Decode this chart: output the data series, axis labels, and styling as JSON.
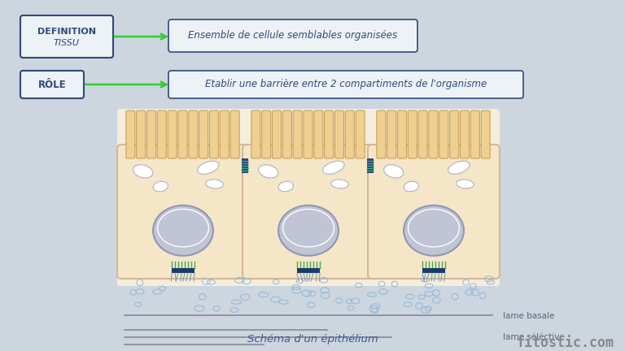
{
  "bg_color": "#cdd5df",
  "title_label": "Schéma d'un épithélium",
  "title_color": "#3a5a8a",
  "watermark": "fitostic.com",
  "watermark_color": "#888888",
  "box1_label_line1": "DEFINITION",
  "box1_label_line2": "TISSU",
  "box1_text": "Ensemble de cellule semblables organisées",
  "box2_label": "RÔLE",
  "box2_text": "Etablir une barrière entre 2 compartiments de l'organisme",
  "box_border_color": "#2e4a7a",
  "label_box_bg": "#edf2f7",
  "text_color": "#2e4a7a",
  "arrow_color": "#33cc33",
  "cell_fill": "#f5e6c8",
  "cell_border": "#d4b896",
  "nucleus_fill": "#c0c4d4",
  "nucleus_border": "#9098b0",
  "organelle_fill": "#e8e8ec",
  "organelle_border": "#b0b0c0",
  "junction_blue": "#2a4a7a",
  "junction_green": "#44aa88",
  "hemi_green": "#44aa55",
  "hemi_blue": "#1a3a6a",
  "dot_edge": "#90b8d8",
  "dot_fill": "#d8eaf8",
  "lame_color": "#888898",
  "lame_basale_label": "lame basale",
  "lame_selective_label": "lame séléctive",
  "microvilli_fill": "#f0d090",
  "microvilli_border": "#c8a060",
  "diagram_bg": "#f5eedd"
}
